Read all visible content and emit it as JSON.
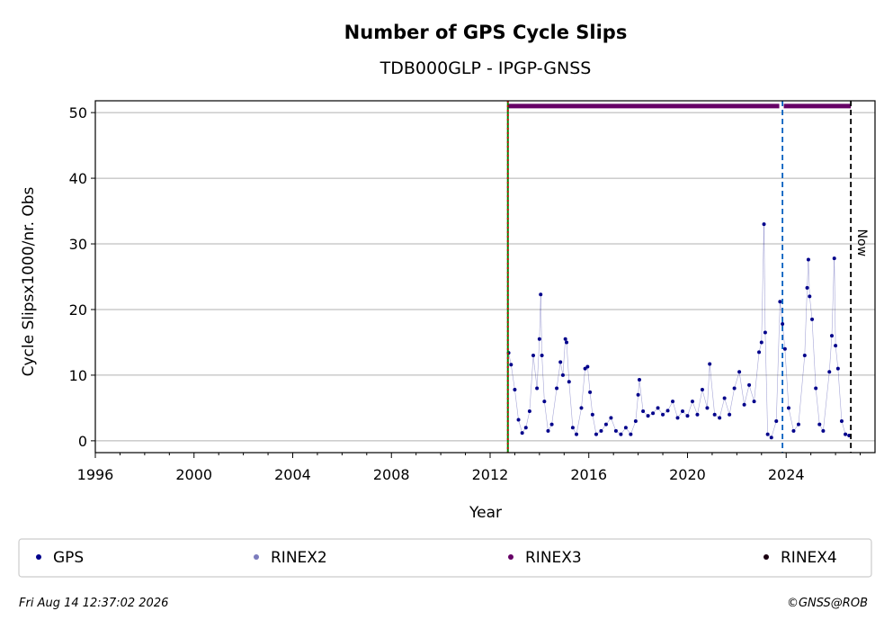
{
  "chart_data": {
    "type": "scatter",
    "title": "Number of GPS Cycle Slips",
    "subtitle": "TDB000GLP - IPGP-GNSS",
    "xlabel": "Year",
    "ylabel": "Cycle Slipsx1000/nr. Obs",
    "xlim": [
      1996,
      2027.6
    ],
    "ylim": [
      -1.8,
      51.8
    ],
    "x_ticks": [
      1996,
      2000,
      2004,
      2008,
      2012,
      2016,
      2020,
      2024
    ],
    "y_ticks": [
      0,
      10,
      20,
      30,
      40,
      50
    ],
    "grid": "horizontal",
    "series": [
      {
        "name": "GPS",
        "color": "#00008b",
        "values": []
      },
      {
        "name": "RINEX2",
        "color": "#7b7bbd",
        "values": []
      },
      {
        "name": "RINEX3",
        "color": "#660066",
        "values": []
      },
      {
        "name": "RINEX4",
        "color": "#1a0010",
        "values": []
      }
    ],
    "gps_points": [
      [
        2012.75,
        13.4
      ],
      [
        2012.85,
        11.6
      ],
      [
        2013.0,
        7.8
      ],
      [
        2013.15,
        3.2
      ],
      [
        2013.3,
        1.2
      ],
      [
        2013.45,
        2.0
      ],
      [
        2013.6,
        4.5
      ],
      [
        2013.75,
        13.0
      ],
      [
        2013.9,
        8.0
      ],
      [
        2014.0,
        15.5
      ],
      [
        2014.05,
        22.3
      ],
      [
        2014.1,
        13.0
      ],
      [
        2014.2,
        6.0
      ],
      [
        2014.35,
        1.5
      ],
      [
        2014.5,
        2.5
      ],
      [
        2014.7,
        8.0
      ],
      [
        2014.85,
        12.0
      ],
      [
        2014.95,
        10.0
      ],
      [
        2015.05,
        15.5
      ],
      [
        2015.1,
        15.0
      ],
      [
        2015.2,
        9.0
      ],
      [
        2015.35,
        2.0
      ],
      [
        2015.5,
        1.0
      ],
      [
        2015.7,
        5.0
      ],
      [
        2015.85,
        11.0
      ],
      [
        2015.95,
        11.3
      ],
      [
        2016.05,
        7.4
      ],
      [
        2016.15,
        4.0
      ],
      [
        2016.3,
        1.0
      ],
      [
        2016.5,
        1.5
      ],
      [
        2016.7,
        2.5
      ],
      [
        2016.9,
        3.5
      ],
      [
        2017.1,
        1.5
      ],
      [
        2017.3,
        1.0
      ],
      [
        2017.5,
        2.0
      ],
      [
        2017.7,
        1.0
      ],
      [
        2017.9,
        3.0
      ],
      [
        2018.0,
        7.0
      ],
      [
        2018.05,
        9.3
      ],
      [
        2018.2,
        4.5
      ],
      [
        2018.4,
        3.8
      ],
      [
        2018.6,
        4.2
      ],
      [
        2018.8,
        5.0
      ],
      [
        2019.0,
        4.0
      ],
      [
        2019.2,
        4.6
      ],
      [
        2019.4,
        6.0
      ],
      [
        2019.6,
        3.5
      ],
      [
        2019.8,
        4.5
      ],
      [
        2020.0,
        3.8
      ],
      [
        2020.2,
        6.0
      ],
      [
        2020.4,
        4.0
      ],
      [
        2020.6,
        7.8
      ],
      [
        2020.8,
        5.0
      ],
      [
        2020.9,
        11.7
      ],
      [
        2021.1,
        4.0
      ],
      [
        2021.3,
        3.5
      ],
      [
        2021.5,
        6.5
      ],
      [
        2021.7,
        4.0
      ],
      [
        2021.9,
        8.0
      ],
      [
        2022.1,
        10.5
      ],
      [
        2022.3,
        5.5
      ],
      [
        2022.5,
        8.5
      ],
      [
        2022.7,
        6.0
      ],
      [
        2022.9,
        13.5
      ],
      [
        2023.0,
        15.0
      ],
      [
        2023.1,
        33.0
      ],
      [
        2023.15,
        16.5
      ],
      [
        2023.25,
        1.0
      ],
      [
        2023.4,
        0.5
      ],
      [
        2023.6,
        3.0
      ],
      [
        2023.75,
        21.2
      ],
      [
        2023.85,
        17.8
      ],
      [
        2023.95,
        14.0
      ],
      [
        2024.1,
        5.0
      ],
      [
        2024.3,
        1.5
      ],
      [
        2024.5,
        2.5
      ],
      [
        2024.75,
        13.0
      ],
      [
        2024.85,
        23.3
      ],
      [
        2024.9,
        27.6
      ],
      [
        2024.95,
        22.0
      ],
      [
        2025.05,
        18.5
      ],
      [
        2025.2,
        8.0
      ],
      [
        2025.35,
        2.5
      ],
      [
        2025.5,
        1.5
      ],
      [
        2025.75,
        10.5
      ],
      [
        2025.85,
        16.0
      ],
      [
        2025.95,
        27.8
      ],
      [
        2026.0,
        14.5
      ],
      [
        2026.1,
        11.0
      ],
      [
        2026.25,
        3.0
      ],
      [
        2026.4,
        1.0
      ],
      [
        2026.55,
        0.8
      ]
    ],
    "vlines": [
      {
        "x": 2012.72,
        "color": "#008000",
        "style": "solid"
      },
      {
        "x": 2012.72,
        "color": "#cc0000",
        "style": "dotted"
      },
      {
        "x": 2023.85,
        "color": "#0060c0",
        "style": "dashed"
      },
      {
        "x": 2026.62,
        "color": "#000000",
        "style": "dashed",
        "label": "Now"
      }
    ],
    "rinex3_bar": {
      "y": 51,
      "x_start": 2012.72,
      "x_end": 2026.62,
      "gap_at": 2023.72,
      "color": "#660066"
    },
    "legend": {
      "location": "below",
      "entries": [
        "GPS",
        "RINEX2",
        "RINEX3",
        "RINEX4"
      ]
    }
  },
  "footer": {
    "timestamp": "Fri Aug 14 12:37:02 2026",
    "credit": "©GNSS@ROB"
  }
}
